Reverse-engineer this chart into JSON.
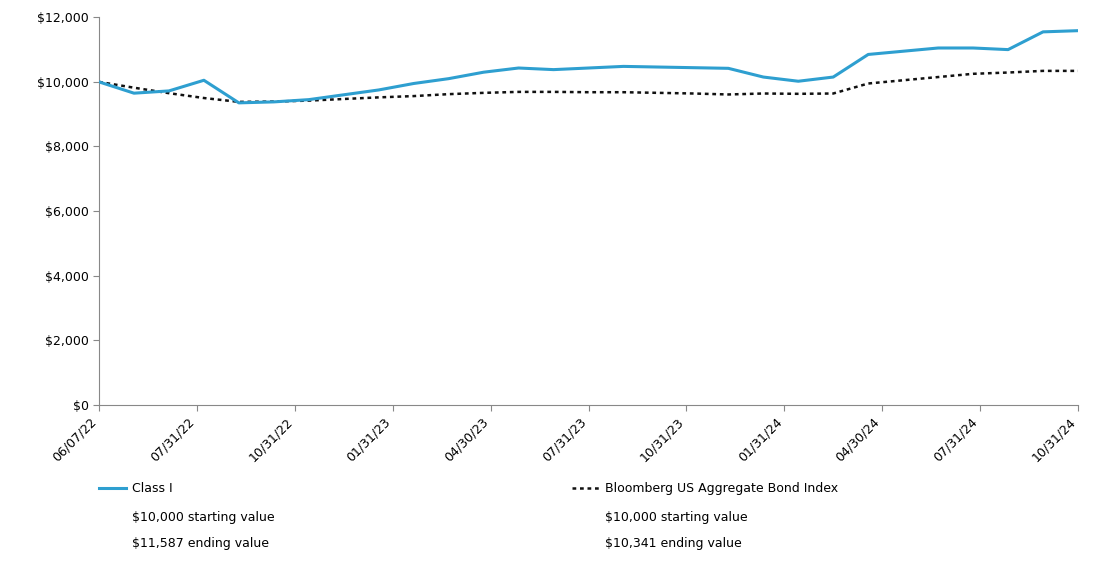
{
  "x_labels": [
    "06/07/22",
    "07/31/22",
    "10/31/22",
    "01/31/23",
    "04/30/23",
    "07/31/23",
    "10/31/23",
    "01/31/24",
    "04/30/24",
    "07/31/24",
    "10/31/24"
  ],
  "class_i_values": [
    10000,
    9650,
    9720,
    10050,
    9350,
    9380,
    9450,
    9600,
    9750,
    9950,
    10100,
    10300,
    10430,
    10380,
    10430,
    10480,
    10460,
    10440,
    10420,
    10150,
    10020,
    10150,
    10850,
    10950,
    11050,
    11050,
    11000,
    11550,
    11587
  ],
  "bloomberg_values": [
    10000,
    9820,
    9650,
    9500,
    9380,
    9390,
    9420,
    9470,
    9520,
    9560,
    9620,
    9660,
    9690,
    9690,
    9680,
    9680,
    9660,
    9640,
    9610,
    9640,
    9630,
    9640,
    9950,
    10050,
    10150,
    10250,
    10290,
    10341,
    10341
  ],
  "n_points": 29,
  "ylim": [
    0,
    12000
  ],
  "yticks": [
    0,
    2000,
    4000,
    6000,
    8000,
    10000,
    12000
  ],
  "line_color_class_i": "#2E9FD0",
  "line_color_bloomberg": "#111111",
  "background_color": "#ffffff",
  "legend_class_i_label": "Class I",
  "legend_class_i_start": "$10,000 starting value",
  "legend_class_i_end": "$11,587 ending value",
  "legend_bloomberg_label": "Bloomberg US Aggregate Bond Index",
  "legend_bloomberg_start": "$10,000 starting value",
  "legend_bloomberg_end": "$10,341 ending value",
  "tick_labels": [
    "06/07/22",
    "07/31/22",
    "10/31/22",
    "01/31/23",
    "04/30/23",
    "07/31/23",
    "10/31/23",
    "01/31/24",
    "04/30/24",
    "07/31/24",
    "10/31/24"
  ]
}
